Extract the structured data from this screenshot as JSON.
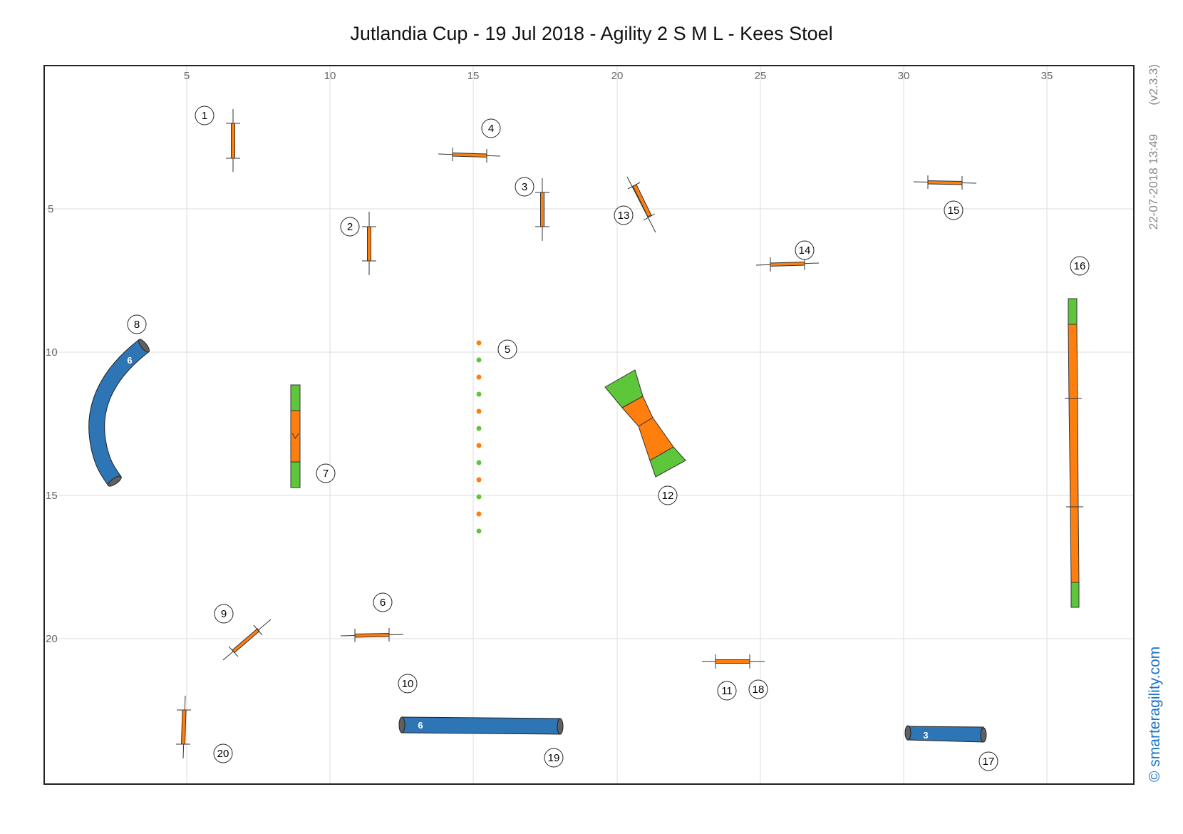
{
  "title": "Jutlandia Cup - 19 Jul 2018 - Agility 2 S M L - Kees Stoel",
  "timestamp": "22-07-2018 13:49",
  "version": "(v2.3.3)",
  "brand": "© smarteragility.com",
  "colors": {
    "orange": "#ff7f0e",
    "green": "#5ec63a",
    "tunnel": "#2e75b6",
    "tunnel_end": "#606060",
    "grid": "#dddddd"
  },
  "axes": {
    "x_ticks": [
      "5",
      "10",
      "15",
      "20",
      "25",
      "30",
      "35"
    ],
    "y_ticks": [
      "5",
      "10",
      "15",
      "20"
    ]
  },
  "obstacles": {
    "jump_1": {
      "number": "1"
    },
    "jump_2": {
      "number": "2"
    },
    "jump_3": {
      "number": "3"
    },
    "jump_4": {
      "number": "4"
    },
    "weave_5": {
      "number": "5"
    },
    "jump_6": {
      "number": "6"
    },
    "aframe_7": {
      "number": "7"
    },
    "tunnel_8": {
      "number": "8",
      "length": "6"
    },
    "jump_9": {
      "number": "9"
    },
    "tunnel_10_19": {
      "numbers": [
        "10",
        "19"
      ],
      "length": "6"
    },
    "jump_11_18": {
      "numbers": [
        "11",
        "18"
      ]
    },
    "seesaw_12": {
      "number": "12"
    },
    "jump_13": {
      "number": "13"
    },
    "jump_14": {
      "number": "14"
    },
    "jump_15": {
      "number": "15"
    },
    "dogwalk_16": {
      "number": "16"
    },
    "tunnel_17": {
      "number": "17",
      "length": "3"
    },
    "jump_20": {
      "number": "20"
    }
  }
}
